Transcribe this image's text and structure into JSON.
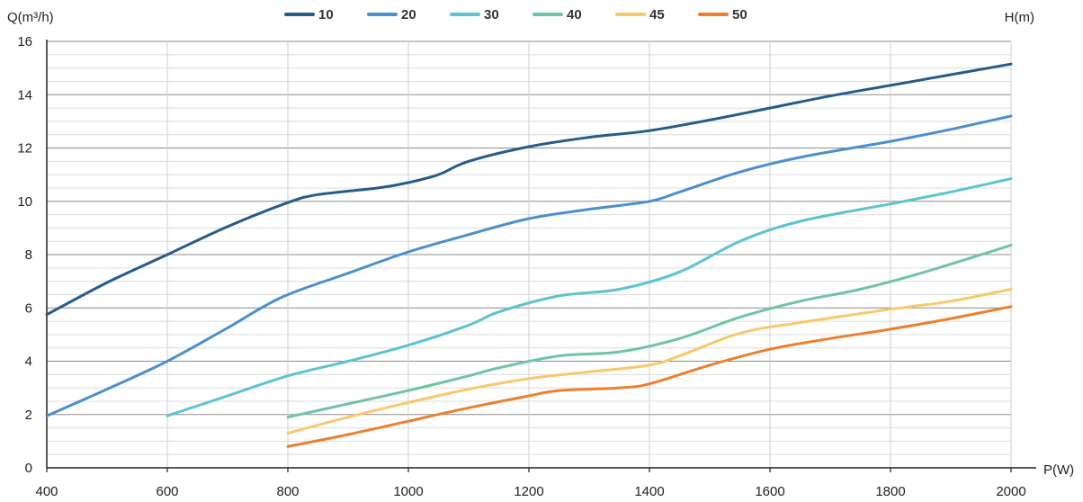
{
  "chart_data": {
    "type": "line",
    "xlabel": "P(W)",
    "ylabel": "Q(m³/h)",
    "legend_title": "H(m)",
    "xlim": [
      400,
      2000
    ],
    "ylim": [
      0,
      16
    ],
    "x_ticks": [
      400,
      600,
      800,
      1000,
      1200,
      1400,
      1600,
      1800,
      2000
    ],
    "y_ticks": [
      0,
      2,
      4,
      6,
      8,
      10,
      12,
      14,
      16
    ],
    "grid": true,
    "legend_position": "top",
    "series": [
      {
        "name": "10",
        "color": "#255c8a",
        "points": [
          [
            400,
            5.75
          ],
          [
            500,
            6.95
          ],
          [
            600,
            8.0
          ],
          [
            700,
            9.05
          ],
          [
            800,
            9.95
          ],
          [
            850,
            10.25
          ],
          [
            950,
            10.5
          ],
          [
            1000,
            10.7
          ],
          [
            1050,
            11.0
          ],
          [
            1100,
            11.5
          ],
          [
            1200,
            12.05
          ],
          [
            1300,
            12.4
          ],
          [
            1400,
            12.65
          ],
          [
            1500,
            13.05
          ],
          [
            1600,
            13.5
          ],
          [
            1700,
            13.95
          ],
          [
            1800,
            14.35
          ],
          [
            1900,
            14.75
          ],
          [
            2000,
            15.15
          ]
        ]
      },
      {
        "name": "20",
        "color": "#4a90cf",
        "points": [
          [
            400,
            1.95
          ],
          [
            500,
            2.95
          ],
          [
            600,
            4.0
          ],
          [
            700,
            5.25
          ],
          [
            790,
            6.4
          ],
          [
            900,
            7.3
          ],
          [
            1000,
            8.1
          ],
          [
            1100,
            8.75
          ],
          [
            1200,
            9.35
          ],
          [
            1300,
            9.7
          ],
          [
            1400,
            10.0
          ],
          [
            1450,
            10.35
          ],
          [
            1550,
            11.1
          ],
          [
            1650,
            11.65
          ],
          [
            1800,
            12.25
          ],
          [
            1900,
            12.7
          ],
          [
            2000,
            13.2
          ]
        ]
      },
      {
        "name": "30",
        "color": "#5bc4cf",
        "points": [
          [
            600,
            1.95
          ],
          [
            700,
            2.7
          ],
          [
            800,
            3.45
          ],
          [
            900,
            4.0
          ],
          [
            1000,
            4.6
          ],
          [
            1100,
            5.35
          ],
          [
            1150,
            5.85
          ],
          [
            1250,
            6.45
          ],
          [
            1350,
            6.7
          ],
          [
            1450,
            7.35
          ],
          [
            1550,
            8.5
          ],
          [
            1650,
            9.25
          ],
          [
            1800,
            9.9
          ],
          [
            1900,
            10.35
          ],
          [
            2000,
            10.85
          ]
        ]
      },
      {
        "name": "40",
        "color": "#6ec5a2",
        "points": [
          [
            800,
            1.9
          ],
          [
            900,
            2.4
          ],
          [
            1000,
            2.9
          ],
          [
            1100,
            3.45
          ],
          [
            1150,
            3.75
          ],
          [
            1250,
            4.2
          ],
          [
            1350,
            4.35
          ],
          [
            1450,
            4.85
          ],
          [
            1550,
            5.65
          ],
          [
            1650,
            6.25
          ],
          [
            1750,
            6.7
          ],
          [
            1850,
            7.3
          ],
          [
            2000,
            8.35
          ]
        ]
      },
      {
        "name": "45",
        "color": "#f7c96a",
        "points": [
          [
            800,
            1.3
          ],
          [
            900,
            1.9
          ],
          [
            1000,
            2.45
          ],
          [
            1100,
            2.95
          ],
          [
            1200,
            3.35
          ],
          [
            1300,
            3.6
          ],
          [
            1400,
            3.85
          ],
          [
            1450,
            4.2
          ],
          [
            1550,
            5.05
          ],
          [
            1650,
            5.45
          ],
          [
            1800,
            5.95
          ],
          [
            1900,
            6.25
          ],
          [
            2000,
            6.7
          ]
        ]
      },
      {
        "name": "50",
        "color": "#ee7f2f",
        "points": [
          [
            800,
            0.8
          ],
          [
            900,
            1.25
          ],
          [
            1000,
            1.75
          ],
          [
            1100,
            2.25
          ],
          [
            1200,
            2.7
          ],
          [
            1250,
            2.9
          ],
          [
            1350,
            3.0
          ],
          [
            1400,
            3.15
          ],
          [
            1500,
            3.85
          ],
          [
            1600,
            4.45
          ],
          [
            1700,
            4.85
          ],
          [
            1800,
            5.2
          ],
          [
            1900,
            5.6
          ],
          [
            2000,
            6.05
          ]
        ]
      }
    ]
  }
}
